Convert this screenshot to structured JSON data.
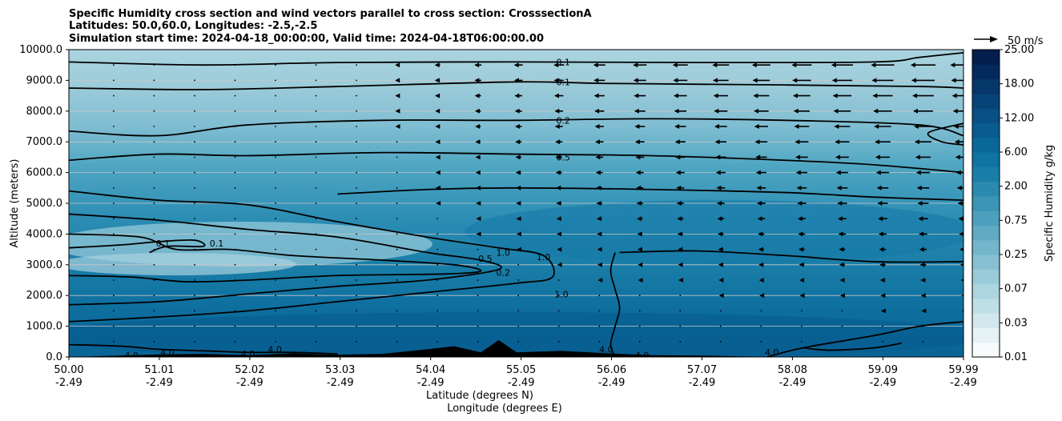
{
  "chart_data": {
    "type": "heatmap",
    "title_lines": [
      "Specific Humidity cross section and wind vectors parallel to cross section: CrosssectionA",
      "Latitudes: 50.0,60.0, Longitudes: -2.5,-2.5",
      "Simulation start time: 2024-04-18_00:00:00, Valid time: 2024-04-18T06:00:00.00"
    ],
    "ylabel": "Altitude (meters)",
    "xlabel_lat": "Latitude (degrees N)",
    "xlabel_lon": "Longitude (degrees E)",
    "ylim": [
      0,
      10000
    ],
    "yticks": [
      "0.0",
      "1000.0",
      "2000.0",
      "3000.0",
      "4000.0",
      "5000.0",
      "6000.0",
      "7000.0",
      "8000.0",
      "9000.0",
      "10000.0"
    ],
    "xticks_lat": [
      "50.00",
      "51.01",
      "52.02",
      "53.03",
      "54.04",
      "55.05",
      "56.06",
      "57.07",
      "58.08",
      "59.09",
      "59.99"
    ],
    "xticks_lon": [
      "-2.49",
      "-2.49",
      "-2.49",
      "-2.49",
      "-2.49",
      "-2.49",
      "-2.49",
      "-2.49",
      "-2.49",
      "-2.49",
      "-2.49"
    ],
    "grid": "horizontal",
    "colorbar": {
      "label": "Specific Humidity g/kg",
      "tick_labels": [
        "0.01",
        "0.03",
        "0.07",
        "0.25",
        "0.75",
        "2.00",
        "6.00",
        "12.00",
        "18.00",
        "25.00"
      ],
      "colors": [
        "#f7fbfc",
        "#e6f2f5",
        "#d2e8ee",
        "#bfdfe7",
        "#acd5e0",
        "#99cbd9",
        "#86c0d2",
        "#73b5cb",
        "#60aac4",
        "#4da0bd",
        "#3a95b6",
        "#2a8aaf",
        "#1a7fa8",
        "#0f74a1",
        "#0a6899",
        "#085c8f",
        "#074f84",
        "#064377",
        "#05376a",
        "#042a5c",
        "#031d4c"
      ]
    },
    "quiver_key": "50 m/s",
    "contour_labels": [
      {
        "text": "0.1",
        "x": 55.52,
        "y": 9600
      },
      {
        "text": "0.1",
        "x": 55.52,
        "y": 8950
      },
      {
        "text": "0.2",
        "x": 55.52,
        "y": 7700
      },
      {
        "text": "0.5",
        "x": 55.52,
        "y": 6500
      },
      {
        "text": "0.1",
        "x": 51.05,
        "y": 3700
      },
      {
        "text": "0.1",
        "x": 51.65,
        "y": 3700
      },
      {
        "text": "1.0",
        "x": 54.85,
        "y": 3400
      },
      {
        "text": "1.0",
        "x": 55.3,
        "y": 3250
      },
      {
        "text": "0.5",
        "x": 54.65,
        "y": 3200
      },
      {
        "text": "0.2",
        "x": 54.85,
        "y": 2750
      },
      {
        "text": "1.0",
        "x": 55.5,
        "y": 2050
      },
      {
        "text": "4.0",
        "x": 50.7,
        "y": 50
      },
      {
        "text": "4.0",
        "x": 51.1,
        "y": 150
      },
      {
        "text": "4.0",
        "x": 52.0,
        "y": 100
      },
      {
        "text": "4.0",
        "x": 52.3,
        "y": 250
      },
      {
        "text": "4.0",
        "x": 56.0,
        "y": 250
      },
      {
        "text": "4.0",
        "x": 56.4,
        "y": 50
      },
      {
        "text": "4.0",
        "x": 57.85,
        "y": 150
      }
    ],
    "contours": [
      {
        "level": "0.1",
        "points": [
          [
            50.0,
            9600
          ],
          [
            51.5,
            9500
          ],
          [
            53.0,
            9580
          ],
          [
            55.0,
            9600
          ],
          [
            57.0,
            9580
          ],
          [
            59.0,
            9600
          ],
          [
            59.5,
            9750
          ],
          [
            59.99,
            9900
          ]
        ]
      },
      {
        "level": "0.1",
        "points": [
          [
            50.0,
            8750
          ],
          [
            51.5,
            8700
          ],
          [
            53.0,
            8800
          ],
          [
            55.0,
            8950
          ],
          [
            56.0,
            8900
          ],
          [
            58.0,
            8850
          ],
          [
            59.5,
            8800
          ],
          [
            59.99,
            8750
          ]
        ]
      },
      {
        "level": "0.2",
        "points": [
          [
            50.0,
            7350
          ],
          [
            51.0,
            7200
          ],
          [
            52.0,
            7550
          ],
          [
            53.5,
            7700
          ],
          [
            55.0,
            7700
          ],
          [
            56.5,
            7750
          ],
          [
            58.0,
            7700
          ],
          [
            59.5,
            7550
          ],
          [
            59.99,
            7200
          ]
        ]
      },
      {
        "level": "0.2b",
        "points": [
          [
            59.99,
            7600
          ],
          [
            59.6,
            7300
          ],
          [
            59.75,
            7000
          ],
          [
            59.99,
            6900
          ]
        ]
      },
      {
        "level": "0.5",
        "points": [
          [
            50.0,
            6400
          ],
          [
            51.0,
            6600
          ],
          [
            52.0,
            6550
          ],
          [
            53.5,
            6650
          ],
          [
            55.0,
            6600
          ],
          [
            56.5,
            6550
          ],
          [
            58.0,
            6400
          ],
          [
            59.0,
            6250
          ],
          [
            59.99,
            6000
          ]
        ]
      },
      {
        "level": "1.0",
        "points": [
          [
            50.0,
            5400
          ],
          [
            51.0,
            5100
          ],
          [
            52.0,
            4950
          ],
          [
            53.0,
            4400
          ],
          [
            54.0,
            3900
          ],
          [
            54.8,
            3550
          ],
          [
            55.3,
            3300
          ],
          [
            55.4,
            2600
          ],
          [
            55.0,
            2400
          ],
          [
            54.0,
            2100
          ],
          [
            53.0,
            1800
          ],
          [
            52.0,
            1500
          ],
          [
            51.0,
            1300
          ],
          [
            50.0,
            1150
          ]
        ]
      },
      {
        "level": "1.0b",
        "points": [
          [
            53.0,
            5300
          ],
          [
            54.0,
            5450
          ],
          [
            55.0,
            5500
          ],
          [
            56.5,
            5450
          ],
          [
            58.0,
            5350
          ],
          [
            59.0,
            5200
          ],
          [
            59.99,
            5100
          ]
        ]
      },
      {
        "level": "0.5",
        "points": [
          [
            50.0,
            4650
          ],
          [
            51.0,
            4450
          ],
          [
            52.0,
            4150
          ],
          [
            53.0,
            3900
          ],
          [
            54.0,
            3400
          ],
          [
            54.6,
            3150
          ],
          [
            54.8,
            2850
          ],
          [
            54.0,
            2500
          ],
          [
            53.0,
            2300
          ],
          [
            52.0,
            2050
          ],
          [
            51.0,
            1800
          ],
          [
            50.0,
            1700
          ]
        ]
      },
      {
        "level": "0.2",
        "points": [
          [
            50.0,
            4000
          ],
          [
            50.8,
            3900
          ],
          [
            51.2,
            3500
          ],
          [
            51.8,
            3500
          ],
          [
            52.5,
            3300
          ],
          [
            53.5,
            3150
          ],
          [
            54.3,
            3000
          ],
          [
            54.6,
            2800
          ],
          [
            54.2,
            2700
          ],
          [
            53.0,
            2650
          ],
          [
            52.0,
            2500
          ],
          [
            51.3,
            2450
          ],
          [
            50.7,
            2600
          ],
          [
            50.0,
            2650
          ]
        ]
      },
      {
        "level": "0.1",
        "points": [
          [
            50.0,
            3550
          ],
          [
            50.6,
            3650
          ],
          [
            51.0,
            3750
          ],
          [
            51.4,
            3800
          ],
          [
            51.5,
            3600
          ],
          [
            51.1,
            3600
          ],
          [
            50.9,
            3400
          ]
        ]
      },
      {
        "level": "2.0",
        "points": [
          [
            56.1,
            3400
          ],
          [
            56.05,
            2800
          ],
          [
            56.1,
            2200
          ],
          [
            56.15,
            1600
          ],
          [
            56.1,
            1000
          ],
          [
            56.05,
            400
          ],
          [
            56.1,
            0
          ]
        ]
      },
      {
        "level": "2.0b",
        "points": [
          [
            56.15,
            3400
          ],
          [
            57.0,
            3450
          ],
          [
            58.0,
            3300
          ],
          [
            59.0,
            3100
          ],
          [
            59.99,
            3100
          ]
        ]
      },
      {
        "level": "4.0",
        "points": [
          [
            57.8,
            0
          ],
          [
            58.2,
            300
          ],
          [
            59.0,
            700
          ],
          [
            59.5,
            1000
          ],
          [
            59.99,
            1150
          ]
        ]
      },
      {
        "level": "4.0c",
        "points": [
          [
            58.2,
            300
          ],
          [
            58.5,
            220
          ],
          [
            59.0,
            300
          ],
          [
            59.3,
            450
          ]
        ]
      },
      {
        "level": "4.0",
        "points": [
          [
            50.0,
            400
          ],
          [
            50.6,
            350
          ],
          [
            51.0,
            250
          ],
          [
            51.5,
            200
          ],
          [
            52.0,
            150
          ],
          [
            52.5,
            150
          ],
          [
            53.0,
            100
          ]
        ]
      }
    ],
    "terrain": [
      [
        50.0,
        0
      ],
      [
        50.5,
        40
      ],
      [
        51.0,
        80
      ],
      [
        51.5,
        100
      ],
      [
        52.0,
        60
      ],
      [
        52.5,
        120
      ],
      [
        53.0,
        70
      ],
      [
        53.5,
        100
      ],
      [
        54.0,
        250
      ],
      [
        54.3,
        350
      ],
      [
        54.6,
        150
      ],
      [
        54.8,
        550
      ],
      [
        55.0,
        150
      ],
      [
        55.5,
        200
      ],
      [
        56.0,
        120
      ],
      [
        56.5,
        60
      ],
      [
        57.0,
        50
      ],
      [
        57.5,
        20
      ],
      [
        58.0,
        0
      ]
    ]
  }
}
